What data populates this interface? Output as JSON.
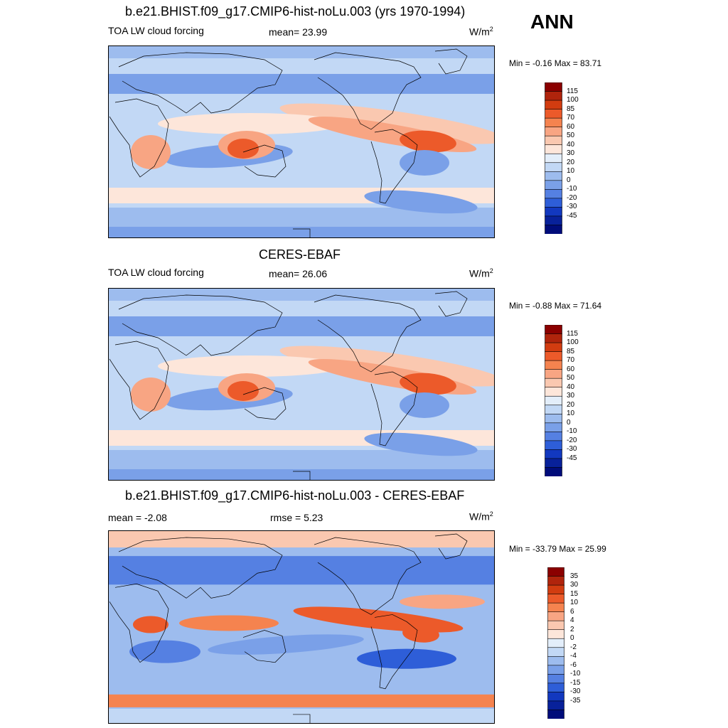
{
  "season": "ANN",
  "panels": [
    {
      "title": "b.e21.BHIST.f09_g17.CMIP6-hist-noLu.003 (yrs 1970-1994)",
      "left_label": "TOA LW cloud forcing",
      "center_label": "mean=  23.99",
      "unit_base": "W/m",
      "unit_sup": "2",
      "minmax": "Min =  -0.16 Max =  83.71",
      "colorbar": {
        "labels": [
          "115",
          "100",
          "85",
          "70",
          "60",
          "50",
          "40",
          "30",
          "20",
          "10",
          "0",
          "-10",
          "-20",
          "-30",
          "-45"
        ],
        "colors": [
          "#8b0000",
          "#b0240c",
          "#d23c10",
          "#ec5a2a",
          "#f5834f",
          "#f8a583",
          "#fac8b0",
          "#fde6da",
          "#e3eefa",
          "#c2d8f5",
          "#9dbcee",
          "#7aa0e8",
          "#5580e2",
          "#2e5ed8",
          "#1238bf",
          "#08219a",
          "#000c7a"
        ]
      }
    },
    {
      "title": "CERES-EBAF",
      "left_label": "TOA LW cloud forcing",
      "center_label": "mean=  26.06",
      "unit_base": "W/m",
      "unit_sup": "2",
      "minmax": "Min =  -0.88 Max =  71.64",
      "colorbar": {
        "labels": [
          "115",
          "100",
          "85",
          "70",
          "60",
          "50",
          "40",
          "30",
          "20",
          "10",
          "0",
          "-10",
          "-20",
          "-30",
          "-45"
        ],
        "colors": [
          "#8b0000",
          "#b0240c",
          "#d23c10",
          "#ec5a2a",
          "#f5834f",
          "#f8a583",
          "#fac8b0",
          "#fde6da",
          "#e3eefa",
          "#c2d8f5",
          "#9dbcee",
          "#7aa0e8",
          "#5580e2",
          "#2e5ed8",
          "#1238bf",
          "#08219a",
          "#000c7a"
        ]
      }
    },
    {
      "title": "b.e21.BHIST.f09_g17.CMIP6-hist-noLu.003 - CERES-EBAF",
      "left_label": "mean =  -2.08",
      "center_label": "rmse =   5.23",
      "unit_base": "W/m",
      "unit_sup": "2",
      "minmax": "Min = -33.79 Max =  25.99",
      "colorbar": {
        "labels": [
          "35",
          "30",
          "15",
          "10",
          "6",
          "4",
          "2",
          "0",
          "-2",
          "-4",
          "-6",
          "-10",
          "-15",
          "-30",
          "-35"
        ],
        "colors": [
          "#8b0000",
          "#b0240c",
          "#d23c10",
          "#ec5a2a",
          "#f5834f",
          "#f8a583",
          "#fac8b0",
          "#fde6da",
          "#e3eefa",
          "#c2d8f5",
          "#9dbcee",
          "#7aa0e8",
          "#5580e2",
          "#2e5ed8",
          "#1238bf",
          "#08219a",
          "#000c7a"
        ]
      }
    }
  ]
}
